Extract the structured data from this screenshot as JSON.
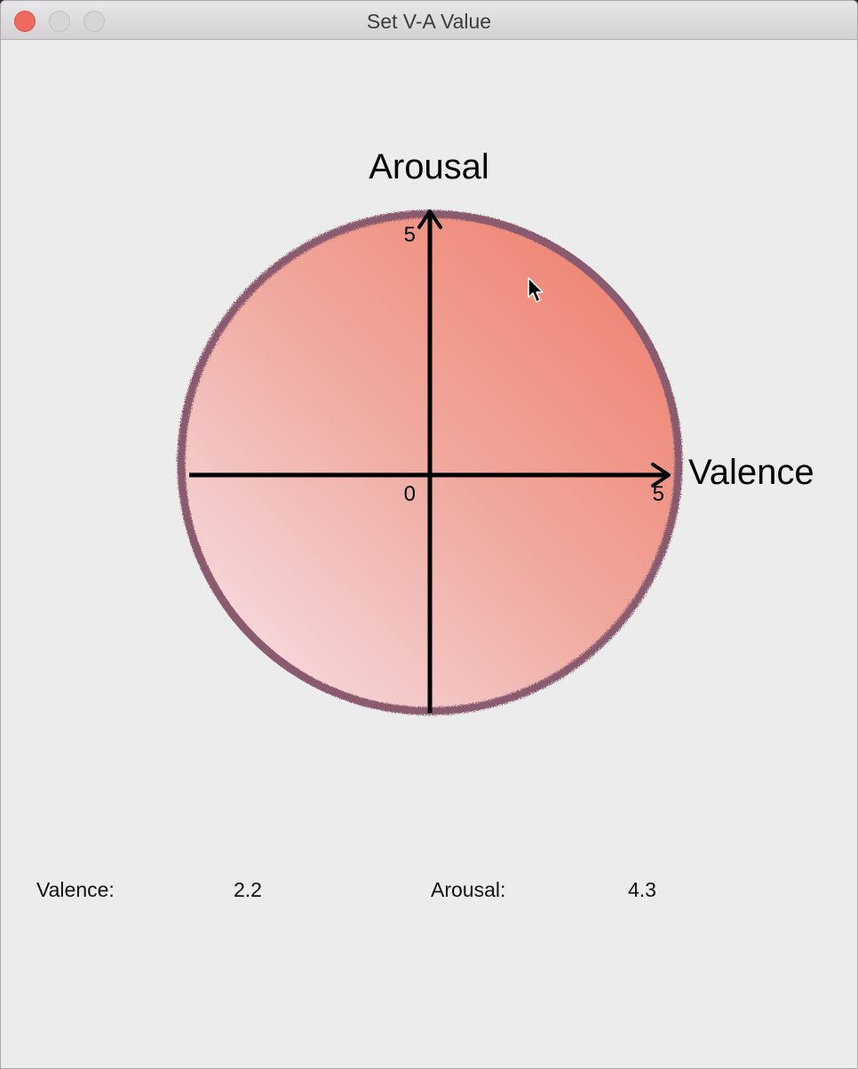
{
  "window": {
    "title": "Set V-A Value"
  },
  "plot": {
    "y_axis_label": "Arousal",
    "x_axis_label": "Valence",
    "origin_label": "0",
    "y_max_label": "5",
    "x_max_label": "5",
    "circle_border_color": "#8a5a6e",
    "gradient_top_right": "#ee8472",
    "gradient_bottom_left": "#f6e0e8"
  },
  "readout": {
    "valence_label": "Valence:",
    "valence_value": "2.2",
    "arousal_label": "Arousal:",
    "arousal_value": "4.3"
  },
  "icons": {
    "close": "close-icon",
    "minimize": "minimize-icon",
    "zoom": "zoom-icon",
    "cursor": "arrow-cursor-icon"
  }
}
